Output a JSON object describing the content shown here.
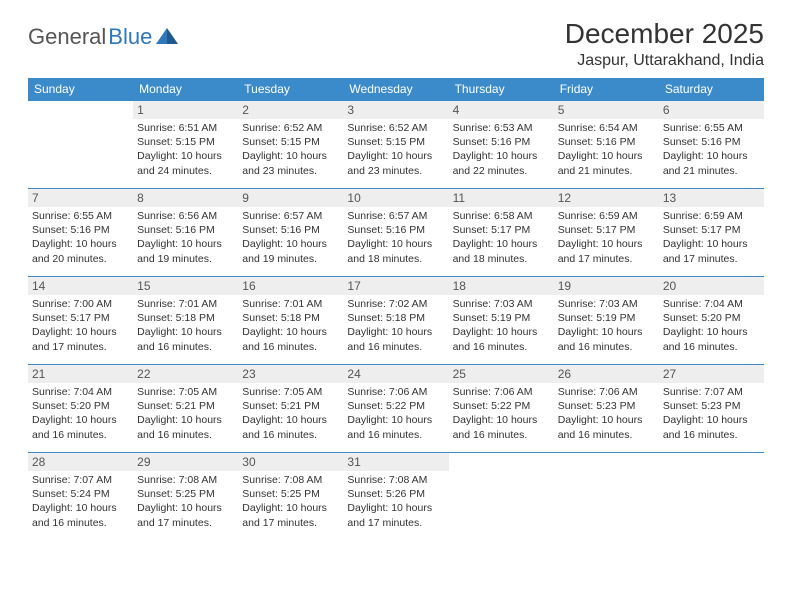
{
  "logo": {
    "text_general": "General",
    "text_blue": "Blue"
  },
  "title": "December 2025",
  "location": "Jaspur, Uttarakhand, India",
  "colors": {
    "header_bg": "#3b8bca",
    "header_text": "#ffffff",
    "daynum_bg": "#eeeeee",
    "border": "#3b8bca",
    "text": "#333333",
    "logo_gray": "#555555",
    "logo_blue": "#2f77bb"
  },
  "dow": [
    "Sunday",
    "Monday",
    "Tuesday",
    "Wednesday",
    "Thursday",
    "Friday",
    "Saturday"
  ],
  "labels": {
    "sunrise": "Sunrise:",
    "sunset": "Sunset:",
    "daylight": "Daylight:"
  },
  "weeks": [
    [
      null,
      {
        "d": "1",
        "sr": "6:51 AM",
        "ss": "5:15 PM",
        "dl": "10 hours and 24 minutes."
      },
      {
        "d": "2",
        "sr": "6:52 AM",
        "ss": "5:15 PM",
        "dl": "10 hours and 23 minutes."
      },
      {
        "d": "3",
        "sr": "6:52 AM",
        "ss": "5:15 PM",
        "dl": "10 hours and 23 minutes."
      },
      {
        "d": "4",
        "sr": "6:53 AM",
        "ss": "5:16 PM",
        "dl": "10 hours and 22 minutes."
      },
      {
        "d": "5",
        "sr": "6:54 AM",
        "ss": "5:16 PM",
        "dl": "10 hours and 21 minutes."
      },
      {
        "d": "6",
        "sr": "6:55 AM",
        "ss": "5:16 PM",
        "dl": "10 hours and 21 minutes."
      }
    ],
    [
      {
        "d": "7",
        "sr": "6:55 AM",
        "ss": "5:16 PM",
        "dl": "10 hours and 20 minutes."
      },
      {
        "d": "8",
        "sr": "6:56 AM",
        "ss": "5:16 PM",
        "dl": "10 hours and 19 minutes."
      },
      {
        "d": "9",
        "sr": "6:57 AM",
        "ss": "5:16 PM",
        "dl": "10 hours and 19 minutes."
      },
      {
        "d": "10",
        "sr": "6:57 AM",
        "ss": "5:16 PM",
        "dl": "10 hours and 18 minutes."
      },
      {
        "d": "11",
        "sr": "6:58 AM",
        "ss": "5:17 PM",
        "dl": "10 hours and 18 minutes."
      },
      {
        "d": "12",
        "sr": "6:59 AM",
        "ss": "5:17 PM",
        "dl": "10 hours and 17 minutes."
      },
      {
        "d": "13",
        "sr": "6:59 AM",
        "ss": "5:17 PM",
        "dl": "10 hours and 17 minutes."
      }
    ],
    [
      {
        "d": "14",
        "sr": "7:00 AM",
        "ss": "5:17 PM",
        "dl": "10 hours and 17 minutes."
      },
      {
        "d": "15",
        "sr": "7:01 AM",
        "ss": "5:18 PM",
        "dl": "10 hours and 16 minutes."
      },
      {
        "d": "16",
        "sr": "7:01 AM",
        "ss": "5:18 PM",
        "dl": "10 hours and 16 minutes."
      },
      {
        "d": "17",
        "sr": "7:02 AM",
        "ss": "5:18 PM",
        "dl": "10 hours and 16 minutes."
      },
      {
        "d": "18",
        "sr": "7:03 AM",
        "ss": "5:19 PM",
        "dl": "10 hours and 16 minutes."
      },
      {
        "d": "19",
        "sr": "7:03 AM",
        "ss": "5:19 PM",
        "dl": "10 hours and 16 minutes."
      },
      {
        "d": "20",
        "sr": "7:04 AM",
        "ss": "5:20 PM",
        "dl": "10 hours and 16 minutes."
      }
    ],
    [
      {
        "d": "21",
        "sr": "7:04 AM",
        "ss": "5:20 PM",
        "dl": "10 hours and 16 minutes."
      },
      {
        "d": "22",
        "sr": "7:05 AM",
        "ss": "5:21 PM",
        "dl": "10 hours and 16 minutes."
      },
      {
        "d": "23",
        "sr": "7:05 AM",
        "ss": "5:21 PM",
        "dl": "10 hours and 16 minutes."
      },
      {
        "d": "24",
        "sr": "7:06 AM",
        "ss": "5:22 PM",
        "dl": "10 hours and 16 minutes."
      },
      {
        "d": "25",
        "sr": "7:06 AM",
        "ss": "5:22 PM",
        "dl": "10 hours and 16 minutes."
      },
      {
        "d": "26",
        "sr": "7:06 AM",
        "ss": "5:23 PM",
        "dl": "10 hours and 16 minutes."
      },
      {
        "d": "27",
        "sr": "7:07 AM",
        "ss": "5:23 PM",
        "dl": "10 hours and 16 minutes."
      }
    ],
    [
      {
        "d": "28",
        "sr": "7:07 AM",
        "ss": "5:24 PM",
        "dl": "10 hours and 16 minutes."
      },
      {
        "d": "29",
        "sr": "7:08 AM",
        "ss": "5:25 PM",
        "dl": "10 hours and 17 minutes."
      },
      {
        "d": "30",
        "sr": "7:08 AM",
        "ss": "5:25 PM",
        "dl": "10 hours and 17 minutes."
      },
      {
        "d": "31",
        "sr": "7:08 AM",
        "ss": "5:26 PM",
        "dl": "10 hours and 17 minutes."
      },
      null,
      null,
      null
    ]
  ]
}
